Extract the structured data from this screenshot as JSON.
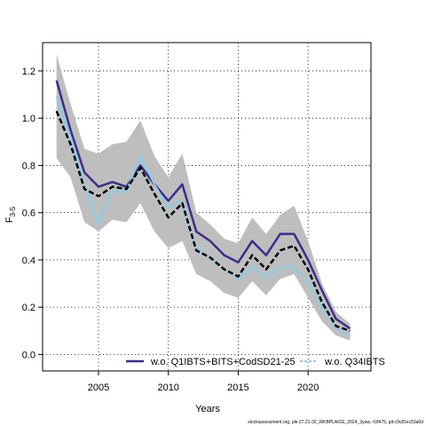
{
  "chart_data": {
    "type": "line",
    "xlabel": "Years",
    "ylabel_main": "F",
    "ylabel_sub": "3-5",
    "xlim": [
      2001,
      2024.5
    ],
    "ylim": [
      -0.07,
      1.32
    ],
    "xticks": [
      2005,
      2010,
      2015,
      2020
    ],
    "yticks": [
      0.0,
      0.2,
      0.4,
      0.6,
      0.8,
      1.0,
      1.2
    ],
    "ytick_labels": [
      "0.0",
      "0.2",
      "0.4",
      "0.6",
      "0.8",
      "1.0",
      "1.2"
    ],
    "grid": true,
    "grid_style": "dotted",
    "legend_position": "bottom",
    "x": [
      2002,
      2003,
      2004,
      2005,
      2006,
      2007,
      2008,
      2009,
      2010,
      2011,
      2012,
      2013,
      2014,
      2015,
      2016,
      2017,
      2018,
      2019,
      2020,
      2021,
      2022,
      2023
    ],
    "confidence_band": {
      "color": "#bebebe",
      "upper": [
        1.27,
        1.06,
        0.87,
        0.85,
        0.89,
        0.9,
        0.99,
        0.84,
        0.75,
        0.85,
        0.6,
        0.55,
        0.49,
        0.47,
        0.58,
        0.51,
        0.59,
        0.63,
        0.48,
        0.3,
        0.18,
        0.13
      ],
      "lower": [
        0.83,
        0.75,
        0.56,
        0.52,
        0.57,
        0.56,
        0.64,
        0.52,
        0.45,
        0.48,
        0.34,
        0.31,
        0.26,
        0.24,
        0.31,
        0.25,
        0.32,
        0.34,
        0.24,
        0.14,
        0.08,
        0.06
      ]
    },
    "series": [
      {
        "name": "",
        "color": "#000000",
        "style": "dashed",
        "width": 2.5,
        "values": [
          1.03,
          0.89,
          0.7,
          0.67,
          0.71,
          0.7,
          0.79,
          0.68,
          0.58,
          0.64,
          0.44,
          0.41,
          0.36,
          0.33,
          0.42,
          0.36,
          0.44,
          0.46,
          0.36,
          0.22,
          0.12,
          0.1
        ]
      },
      {
        "name": "w.o. Q1IBTS+BITS+CodSD21-25",
        "color": "#3d2c8d",
        "style": "solid",
        "width": 2.5,
        "values": [
          1.16,
          0.95,
          0.77,
          0.71,
          0.73,
          0.71,
          0.8,
          0.72,
          0.65,
          0.72,
          0.52,
          0.48,
          0.42,
          0.39,
          0.48,
          0.42,
          0.51,
          0.51,
          0.4,
          0.27,
          0.15,
          0.11
        ]
      },
      {
        "name": "w.o. Q34IBTS",
        "color": "#87ceeb",
        "style": "solid",
        "width": 2.0,
        "values": [
          1.09,
          0.92,
          0.72,
          0.55,
          0.69,
          0.69,
          0.84,
          0.72,
          0.62,
          0.65,
          0.45,
          0.41,
          0.36,
          0.32,
          0.37,
          0.33,
          0.37,
          0.37,
          0.31,
          0.2,
          0.11,
          0.08
        ]
      }
    ],
    "footnote": "stockassessment.org, ple.27.21-32_WKBPLAICE_2024_3yaw, r18475, git:c9c81ec53a0d"
  }
}
